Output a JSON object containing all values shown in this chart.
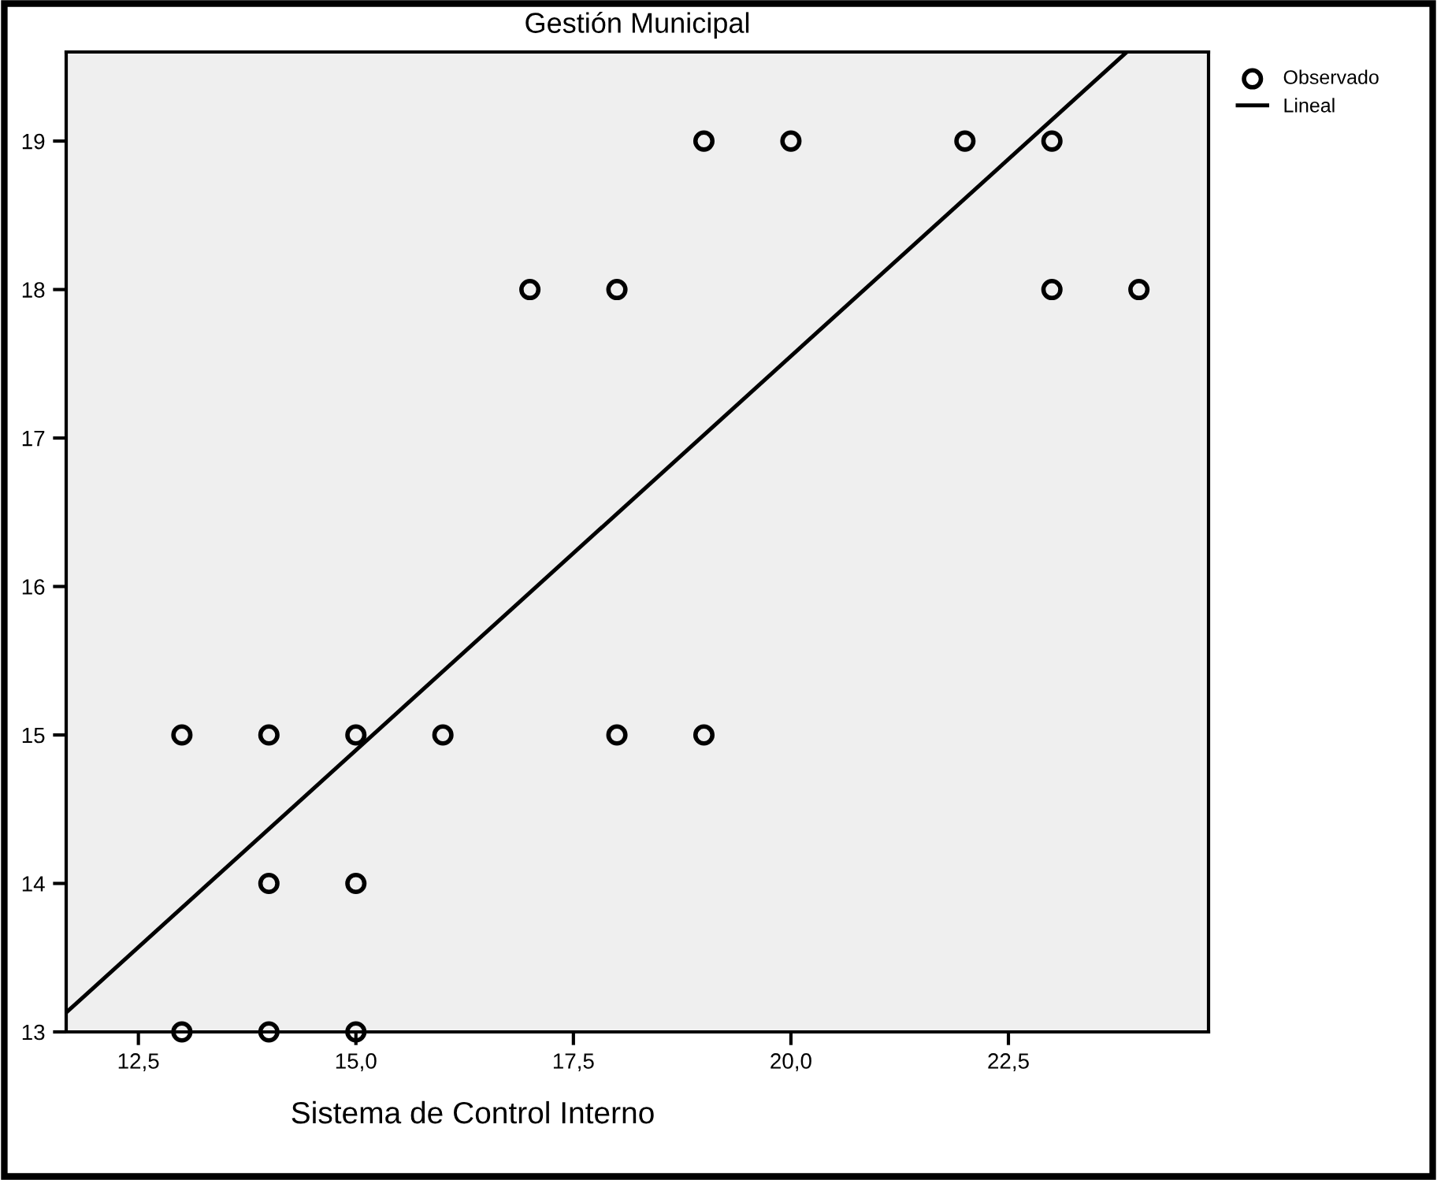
{
  "chart_data": {
    "type": "scatter",
    "title": "Gestión Municipal",
    "xlabel": "Sistema de Control Interno",
    "xlim": [
      11.67,
      24.8
    ],
    "ylim": [
      13,
      19.6
    ],
    "xticks": [
      {
        "value": 12.5,
        "label": "12,5"
      },
      {
        "value": 15.0,
        "label": "15,0"
      },
      {
        "value": 17.5,
        "label": "17,5"
      },
      {
        "value": 20.0,
        "label": "20,0"
      },
      {
        "value": 22.5,
        "label": "22,5"
      }
    ],
    "yticks": [
      13,
      14,
      15,
      16,
      17,
      18,
      19
    ],
    "grid": false,
    "legend": "top right",
    "series": [
      {
        "name": "Observado",
        "marker": "circle",
        "color": "#000000",
        "x": [
          13,
          14,
          15,
          14,
          15,
          13,
          14,
          15,
          16,
          18,
          19,
          17,
          18,
          23,
          24,
          19,
          20,
          22,
          23
        ],
        "values": [
          13,
          13,
          13,
          14,
          14,
          15,
          15,
          15,
          15,
          15,
          15,
          18,
          18,
          18,
          18,
          19,
          19,
          19,
          19
        ]
      },
      {
        "name": "Lineal",
        "type": "line",
        "marker": "none",
        "line_style": "solid",
        "color": "#000000",
        "x": [
          11.67,
          23.86
        ],
        "values": [
          13.13,
          19.6
        ]
      }
    ]
  }
}
